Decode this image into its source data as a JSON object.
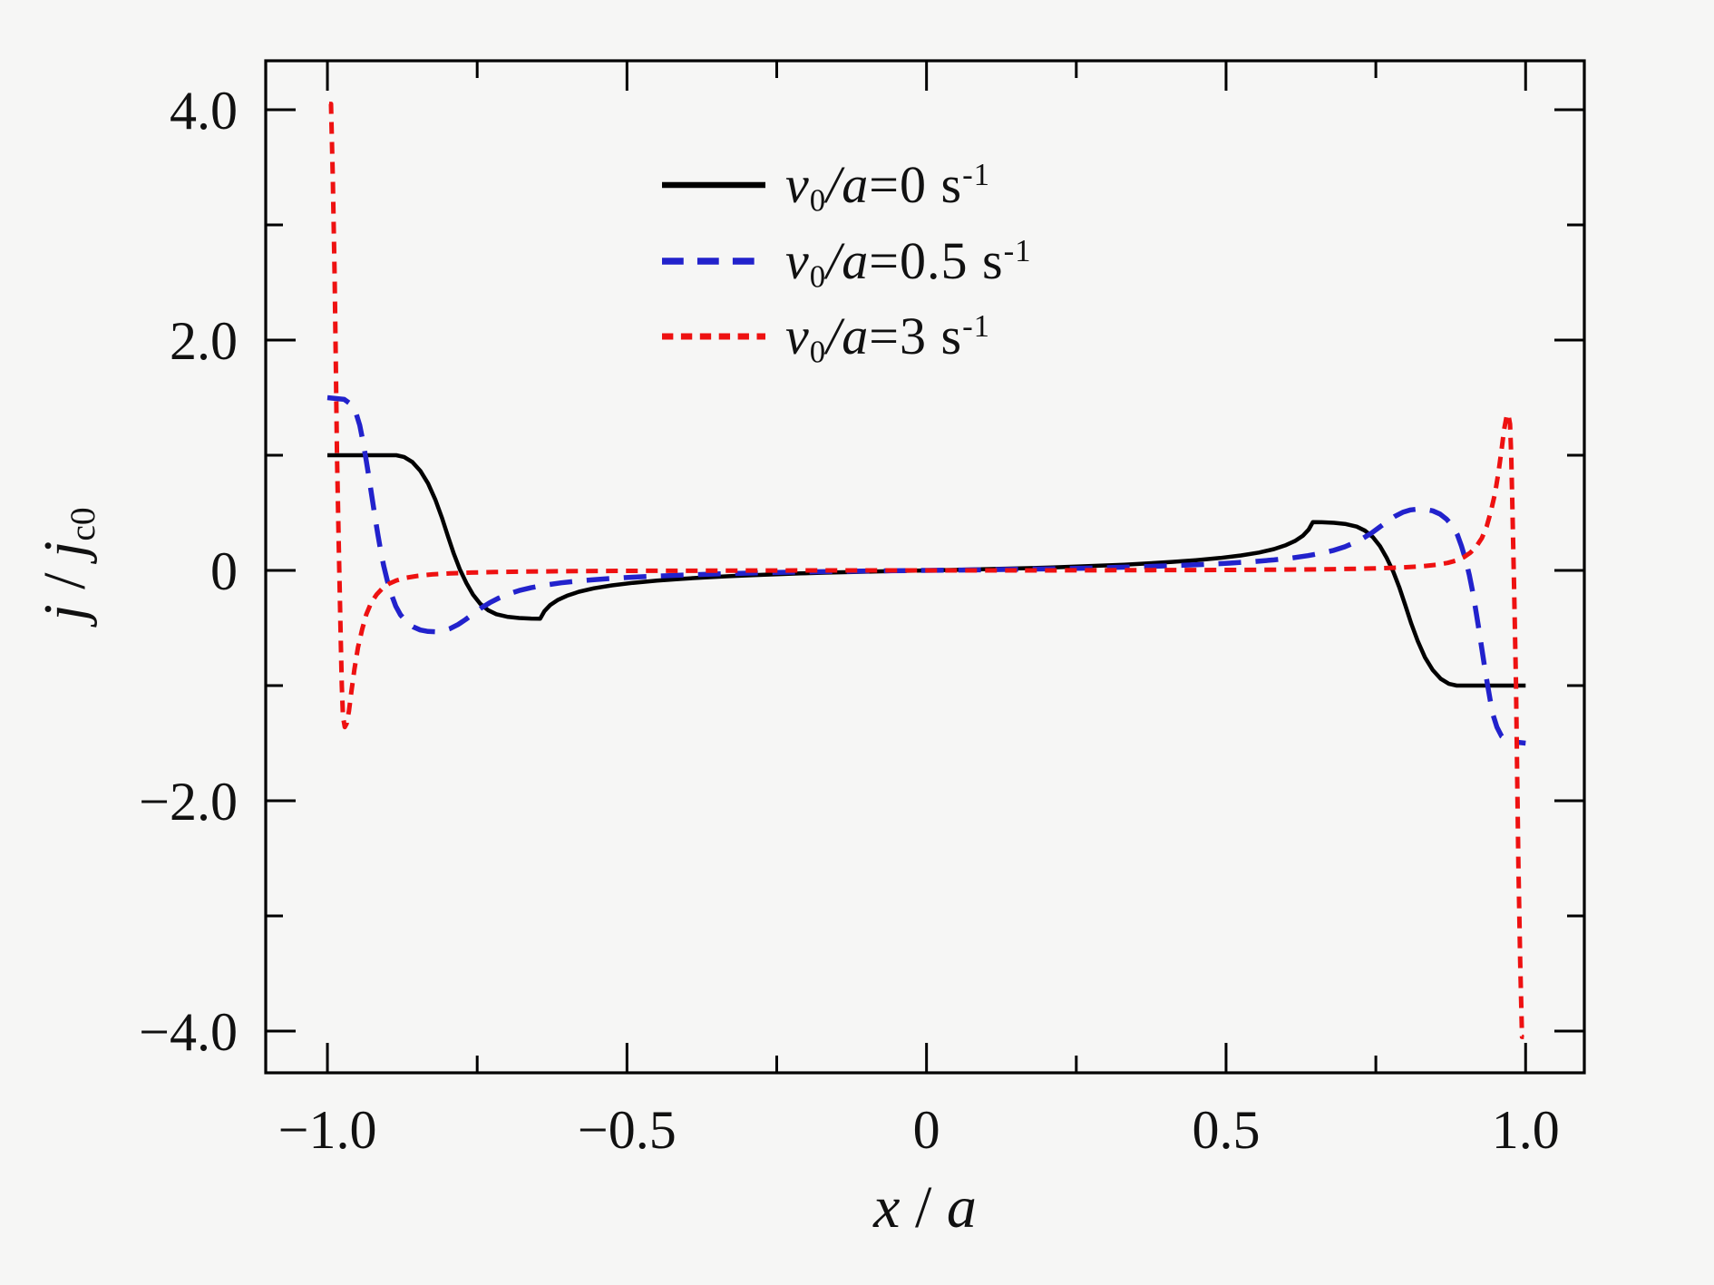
{
  "colors": {
    "background": "#f6f6f5",
    "frame": "#000000",
    "series_black": "#000000",
    "series_blue": "#2222cc",
    "series_red": "#ee1111"
  },
  "axes_text": {
    "xlabel": {
      "var1": "x",
      "slash": " / ",
      "var2": "a"
    },
    "ylabel": {
      "var1": "j",
      "slash": " / ",
      "var2": "j",
      "sub": "c0"
    }
  },
  "legend": {
    "items": [
      {
        "v": "v",
        "v_sub": "0",
        "over_a": "/a",
        "rest": "=0 s",
        "sup": "-1"
      },
      {
        "v": "v",
        "v_sub": "0",
        "over_a": "/a",
        "rest": "=0.5 s",
        "sup": "-1"
      },
      {
        "v": "v",
        "v_sub": "0",
        "over_a": "/a",
        "rest": "=3 s",
        "sup": "-1"
      }
    ]
  },
  "chart_data": {
    "type": "line",
    "title": "",
    "xlabel": "x / a",
    "ylabel": "j / j_c0",
    "grid": false,
    "legend_position": "upper center inside",
    "xlim": [
      -1.103,
      1.098
    ],
    "ylim": [
      -4.362,
      4.425
    ],
    "x_major_ticks": [
      -1.0,
      -0.5,
      0,
      0.5,
      1.0
    ],
    "x_major_labels": [
      "−1.0",
      "−0.5",
      "0",
      "0.5",
      "1.0"
    ],
    "x_minor_ticks": [
      -0.75,
      -0.25,
      0.25,
      0.75
    ],
    "y_major_ticks": [
      4,
      2,
      0,
      -2,
      -4
    ],
    "y_major_labels": [
      "4.0",
      "2.0",
      "0",
      "−2.0",
      "−4.0"
    ],
    "y_minor_ticks": [
      3,
      1,
      -1,
      -3
    ],
    "series": [
      {
        "id": "v0a-0",
        "name": "v0/a=0 s^-1",
        "color": "#000000",
        "dash": "solid",
        "width": 4.5,
        "points": [
          [
            -1.0,
            1.0
          ],
          [
            -0.885,
            1.0
          ],
          [
            -0.872,
            0.985
          ],
          [
            -0.858,
            0.94
          ],
          [
            -0.845,
            0.865
          ],
          [
            -0.832,
            0.755
          ],
          [
            -0.82,
            0.615
          ],
          [
            -0.809,
            0.46
          ],
          [
            -0.799,
            0.3
          ],
          [
            -0.789,
            0.145
          ],
          [
            -0.779,
            0.01
          ],
          [
            -0.768,
            -0.11
          ],
          [
            -0.757,
            -0.21
          ],
          [
            -0.745,
            -0.29
          ],
          [
            -0.732,
            -0.345
          ],
          [
            -0.718,
            -0.38
          ],
          [
            -0.7,
            -0.402
          ],
          [
            -0.68,
            -0.413
          ],
          [
            -0.66,
            -0.418
          ],
          [
            -0.645,
            -0.42
          ],
          [
            -0.638,
            -0.355
          ],
          [
            -0.628,
            -0.3
          ],
          [
            -0.615,
            -0.255
          ],
          [
            -0.6,
            -0.22
          ],
          [
            -0.58,
            -0.185
          ],
          [
            -0.555,
            -0.155
          ],
          [
            -0.525,
            -0.13
          ],
          [
            -0.49,
            -0.108
          ],
          [
            -0.45,
            -0.089
          ],
          [
            -0.41,
            -0.074
          ],
          [
            -0.37,
            -0.061
          ],
          [
            -0.33,
            -0.05
          ],
          [
            -0.29,
            -0.041
          ],
          [
            -0.25,
            -0.033
          ],
          [
            -0.21,
            -0.026
          ],
          [
            -0.17,
            -0.02
          ],
          [
            -0.13,
            -0.015
          ],
          [
            -0.09,
            -0.01
          ],
          [
            -0.05,
            -0.005
          ],
          [
            0,
            0
          ],
          [
            0.05,
            0.005
          ],
          [
            0.09,
            0.01
          ],
          [
            0.13,
            0.015
          ],
          [
            0.17,
            0.02
          ],
          [
            0.21,
            0.026
          ],
          [
            0.25,
            0.033
          ],
          [
            0.29,
            0.041
          ],
          [
            0.33,
            0.05
          ],
          [
            0.37,
            0.061
          ],
          [
            0.41,
            0.074
          ],
          [
            0.45,
            0.089
          ],
          [
            0.49,
            0.108
          ],
          [
            0.525,
            0.13
          ],
          [
            0.555,
            0.155
          ],
          [
            0.58,
            0.185
          ],
          [
            0.6,
            0.22
          ],
          [
            0.615,
            0.255
          ],
          [
            0.628,
            0.3
          ],
          [
            0.638,
            0.355
          ],
          [
            0.645,
            0.42
          ],
          [
            0.66,
            0.418
          ],
          [
            0.68,
            0.413
          ],
          [
            0.7,
            0.402
          ],
          [
            0.718,
            0.38
          ],
          [
            0.732,
            0.345
          ],
          [
            0.745,
            0.29
          ],
          [
            0.757,
            0.21
          ],
          [
            0.768,
            0.11
          ],
          [
            0.779,
            -0.01
          ],
          [
            0.789,
            -0.145
          ],
          [
            0.799,
            -0.3
          ],
          [
            0.809,
            -0.46
          ],
          [
            0.82,
            -0.615
          ],
          [
            0.832,
            -0.755
          ],
          [
            0.845,
            -0.865
          ],
          [
            0.858,
            -0.94
          ],
          [
            0.872,
            -0.985
          ],
          [
            0.885,
            -1.0
          ],
          [
            1.0,
            -1.0
          ]
        ]
      },
      {
        "id": "v0a-05",
        "name": "v0/a=0.5 s^-1",
        "color": "#2222cc",
        "dash": "25 16",
        "width": 5.5,
        "points": [
          [
            -1.0,
            1.5
          ],
          [
            -0.972,
            1.485
          ],
          [
            -0.96,
            1.44
          ],
          [
            -0.952,
            1.36
          ],
          [
            -0.946,
            1.26
          ],
          [
            -0.941,
            1.13
          ],
          [
            -0.936,
            0.98
          ],
          [
            -0.931,
            0.82
          ],
          [
            -0.926,
            0.65
          ],
          [
            -0.921,
            0.48
          ],
          [
            -0.916,
            0.32
          ],
          [
            -0.911,
            0.17
          ],
          [
            -0.906,
            0.04
          ],
          [
            -0.9,
            -0.09
          ],
          [
            -0.893,
            -0.21
          ],
          [
            -0.886,
            -0.31
          ],
          [
            -0.878,
            -0.385
          ],
          [
            -0.868,
            -0.445
          ],
          [
            -0.857,
            -0.49
          ],
          [
            -0.845,
            -0.517
          ],
          [
            -0.832,
            -0.53
          ],
          [
            -0.82,
            -0.532
          ],
          [
            -0.808,
            -0.525
          ],
          [
            -0.795,
            -0.505
          ],
          [
            -0.782,
            -0.47
          ],
          [
            -0.769,
            -0.425
          ],
          [
            -0.756,
            -0.375
          ],
          [
            -0.743,
            -0.325
          ],
          [
            -0.729,
            -0.28
          ],
          [
            -0.714,
            -0.24
          ],
          [
            -0.698,
            -0.205
          ],
          [
            -0.68,
            -0.175
          ],
          [
            -0.66,
            -0.15
          ],
          [
            -0.637,
            -0.128
          ],
          [
            -0.61,
            -0.108
          ],
          [
            -0.58,
            -0.091
          ],
          [
            -0.545,
            -0.076
          ],
          [
            -0.505,
            -0.063
          ],
          [
            -0.46,
            -0.051
          ],
          [
            -0.41,
            -0.041
          ],
          [
            -0.36,
            -0.032
          ],
          [
            -0.31,
            -0.025
          ],
          [
            -0.26,
            -0.019
          ],
          [
            -0.21,
            -0.014
          ],
          [
            -0.16,
            -0.01
          ],
          [
            -0.11,
            -0.006
          ],
          [
            -0.06,
            -0.003
          ],
          [
            0,
            0
          ],
          [
            0.06,
            0.003
          ],
          [
            0.11,
            0.006
          ],
          [
            0.16,
            0.01
          ],
          [
            0.21,
            0.014
          ],
          [
            0.26,
            0.019
          ],
          [
            0.31,
            0.025
          ],
          [
            0.36,
            0.032
          ],
          [
            0.41,
            0.041
          ],
          [
            0.46,
            0.051
          ],
          [
            0.505,
            0.063
          ],
          [
            0.545,
            0.076
          ],
          [
            0.58,
            0.091
          ],
          [
            0.61,
            0.108
          ],
          [
            0.637,
            0.128
          ],
          [
            0.66,
            0.15
          ],
          [
            0.68,
            0.175
          ],
          [
            0.698,
            0.205
          ],
          [
            0.714,
            0.24
          ],
          [
            0.729,
            0.28
          ],
          [
            0.743,
            0.325
          ],
          [
            0.756,
            0.375
          ],
          [
            0.769,
            0.425
          ],
          [
            0.782,
            0.47
          ],
          [
            0.795,
            0.505
          ],
          [
            0.808,
            0.525
          ],
          [
            0.82,
            0.532
          ],
          [
            0.832,
            0.53
          ],
          [
            0.845,
            0.517
          ],
          [
            0.857,
            0.49
          ],
          [
            0.868,
            0.445
          ],
          [
            0.878,
            0.385
          ],
          [
            0.886,
            0.31
          ],
          [
            0.893,
            0.21
          ],
          [
            0.9,
            0.09
          ],
          [
            0.906,
            -0.04
          ],
          [
            0.911,
            -0.17
          ],
          [
            0.916,
            -0.32
          ],
          [
            0.921,
            -0.48
          ],
          [
            0.926,
            -0.65
          ],
          [
            0.931,
            -0.82
          ],
          [
            0.936,
            -0.98
          ],
          [
            0.941,
            -1.13
          ],
          [
            0.946,
            -1.26
          ],
          [
            0.952,
            -1.36
          ],
          [
            0.96,
            -1.44
          ],
          [
            0.972,
            -1.485
          ],
          [
            1.0,
            -1.5
          ]
        ]
      },
      {
        "id": "v0a-3",
        "name": "v0/a=3 s^-1",
        "color": "#ee1111",
        "dash": "13 9",
        "width": 5,
        "points": [
          [
            -0.997,
            4.05
          ],
          [
            -0.994,
            4.05
          ],
          [
            -0.991,
            3.4
          ],
          [
            -0.988,
            2.55
          ],
          [
            -0.986,
            1.8
          ],
          [
            -0.984,
            1.0
          ],
          [
            -0.981,
            0.2
          ],
          [
            -0.978,
            -0.55
          ],
          [
            -0.976,
            -1.0
          ],
          [
            -0.974,
            -1.27
          ],
          [
            -0.971,
            -1.36
          ],
          [
            -0.968,
            -1.33
          ],
          [
            -0.964,
            -1.22
          ],
          [
            -0.96,
            -1.05
          ],
          [
            -0.955,
            -0.86
          ],
          [
            -0.949,
            -0.67
          ],
          [
            -0.942,
            -0.51
          ],
          [
            -0.935,
            -0.38
          ],
          [
            -0.927,
            -0.28
          ],
          [
            -0.918,
            -0.21
          ],
          [
            -0.908,
            -0.155
          ],
          [
            -0.897,
            -0.115
          ],
          [
            -0.885,
            -0.087
          ],
          [
            -0.87,
            -0.065
          ],
          [
            -0.85,
            -0.048
          ],
          [
            -0.825,
            -0.035
          ],
          [
            -0.795,
            -0.026
          ],
          [
            -0.76,
            -0.019
          ],
          [
            -0.72,
            -0.014
          ],
          [
            -0.67,
            -0.01
          ],
          [
            -0.61,
            -0.007
          ],
          [
            -0.54,
            -0.005
          ],
          [
            -0.46,
            -0.003
          ],
          [
            -0.37,
            -0.002
          ],
          [
            -0.27,
            -0.001
          ],
          [
            -0.15,
            0
          ],
          [
            0.15,
            0
          ],
          [
            0.27,
            0.001
          ],
          [
            0.37,
            0.002
          ],
          [
            0.46,
            0.003
          ],
          [
            0.54,
            0.005
          ],
          [
            0.61,
            0.007
          ],
          [
            0.67,
            0.01
          ],
          [
            0.72,
            0.014
          ],
          [
            0.76,
            0.019
          ],
          [
            0.795,
            0.026
          ],
          [
            0.825,
            0.035
          ],
          [
            0.85,
            0.048
          ],
          [
            0.87,
            0.065
          ],
          [
            0.885,
            0.087
          ],
          [
            0.897,
            0.115
          ],
          [
            0.908,
            0.155
          ],
          [
            0.918,
            0.21
          ],
          [
            0.927,
            0.28
          ],
          [
            0.935,
            0.38
          ],
          [
            0.942,
            0.51
          ],
          [
            0.949,
            0.67
          ],
          [
            0.955,
            0.86
          ],
          [
            0.96,
            1.05
          ],
          [
            0.964,
            1.22
          ],
          [
            0.968,
            1.33
          ],
          [
            0.971,
            1.36
          ],
          [
            0.974,
            1.27
          ],
          [
            0.976,
            1.0
          ],
          [
            0.978,
            0.55
          ],
          [
            0.981,
            -0.2
          ],
          [
            0.984,
            -1.0
          ],
          [
            0.986,
            -1.8
          ],
          [
            0.988,
            -2.55
          ],
          [
            0.991,
            -3.4
          ],
          [
            0.994,
            -4.05
          ],
          [
            0.997,
            -4.05
          ]
        ]
      }
    ]
  }
}
